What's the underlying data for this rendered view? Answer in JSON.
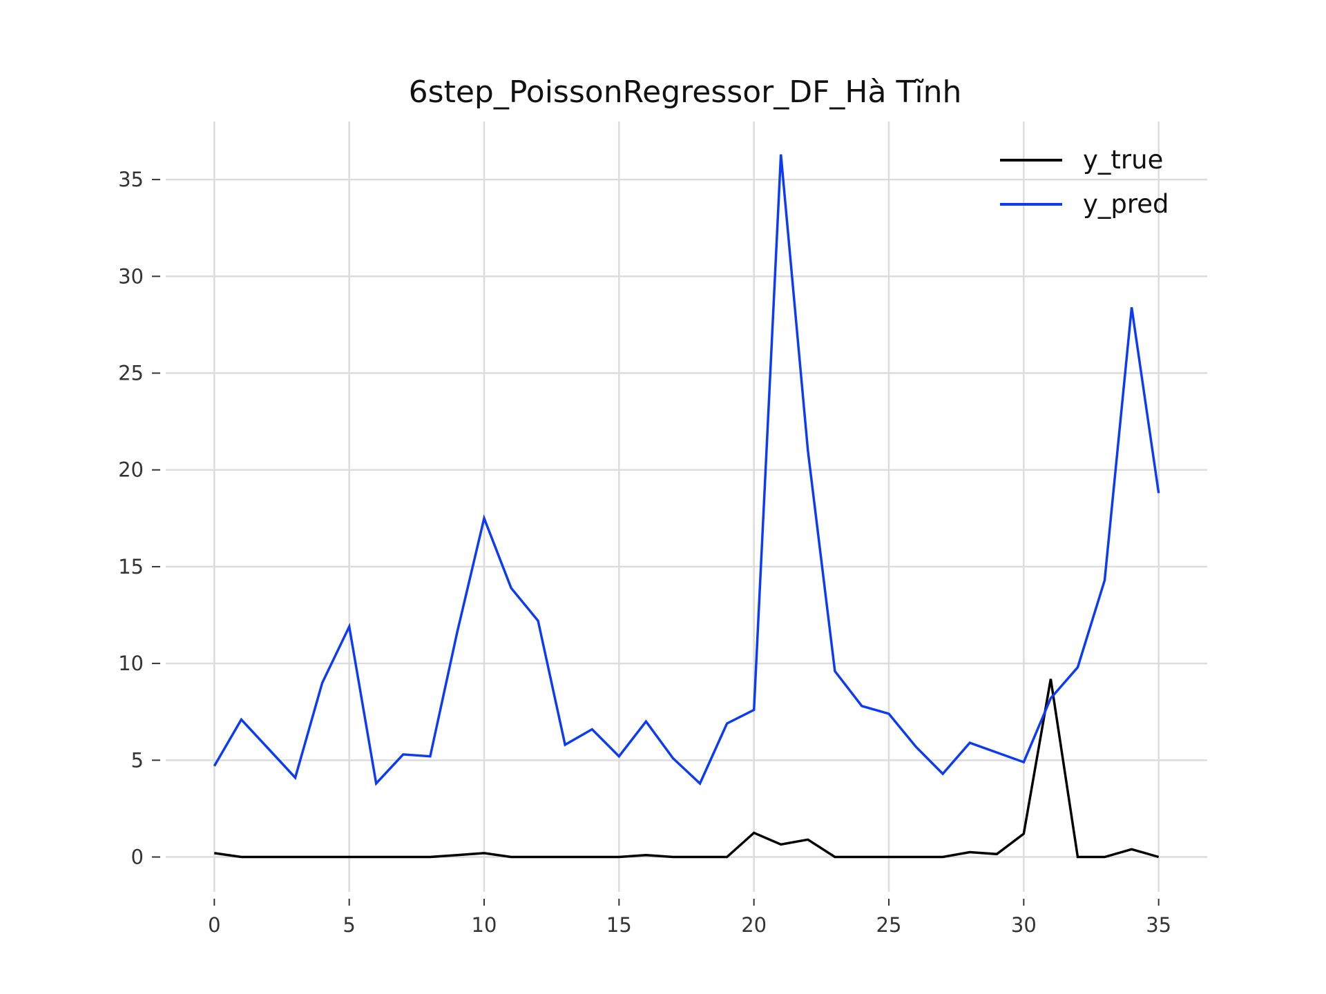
{
  "chart_data": {
    "type": "line",
    "title": "6step_PoissonRegressor_DF_Hà Tĩnh",
    "xlabel": "",
    "ylabel": "",
    "xlim": [
      -1.8,
      36.8
    ],
    "ylim": [
      -1.8,
      38.0
    ],
    "x_ticks": [
      0,
      5,
      10,
      15,
      20,
      25,
      30,
      35
    ],
    "y_ticks": [
      0,
      5,
      10,
      15,
      20,
      25,
      30,
      35
    ],
    "grid": true,
    "legend_position": "top-right",
    "x": [
      0,
      1,
      2,
      3,
      4,
      5,
      6,
      7,
      8,
      9,
      10,
      11,
      12,
      13,
      14,
      15,
      16,
      17,
      18,
      19,
      20,
      21,
      22,
      23,
      24,
      25,
      26,
      27,
      28,
      29,
      30,
      31,
      32,
      33,
      34,
      35
    ],
    "series": [
      {
        "name": "y_true",
        "color": "#000000",
        "values": [
          0.2,
          0,
          0,
          0,
          0,
          0,
          0,
          0,
          0,
          0.1,
          0.2,
          0,
          0,
          0,
          0,
          0,
          0.1,
          0,
          0,
          0,
          1.25,
          0.65,
          0.9,
          0,
          0,
          0,
          0,
          0,
          0.25,
          0.15,
          1.2,
          9.2,
          0,
          0,
          0.4,
          0
        ]
      },
      {
        "name": "y_pred",
        "color": "#0b3bf5",
        "values": [
          4.7,
          7.1,
          5.6,
          4.1,
          9.0,
          11.9,
          3.8,
          5.3,
          5.2,
          11.6,
          17.5,
          13.9,
          12.2,
          5.8,
          6.6,
          5.2,
          7.0,
          5.1,
          3.8,
          6.9,
          7.6,
          36.3,
          21.0,
          9.6,
          7.8,
          7.4,
          5.7,
          4.3,
          5.9,
          5.4,
          4.9,
          8.2,
          9.8,
          14.3,
          28.4,
          18.8
        ]
      }
    ]
  }
}
